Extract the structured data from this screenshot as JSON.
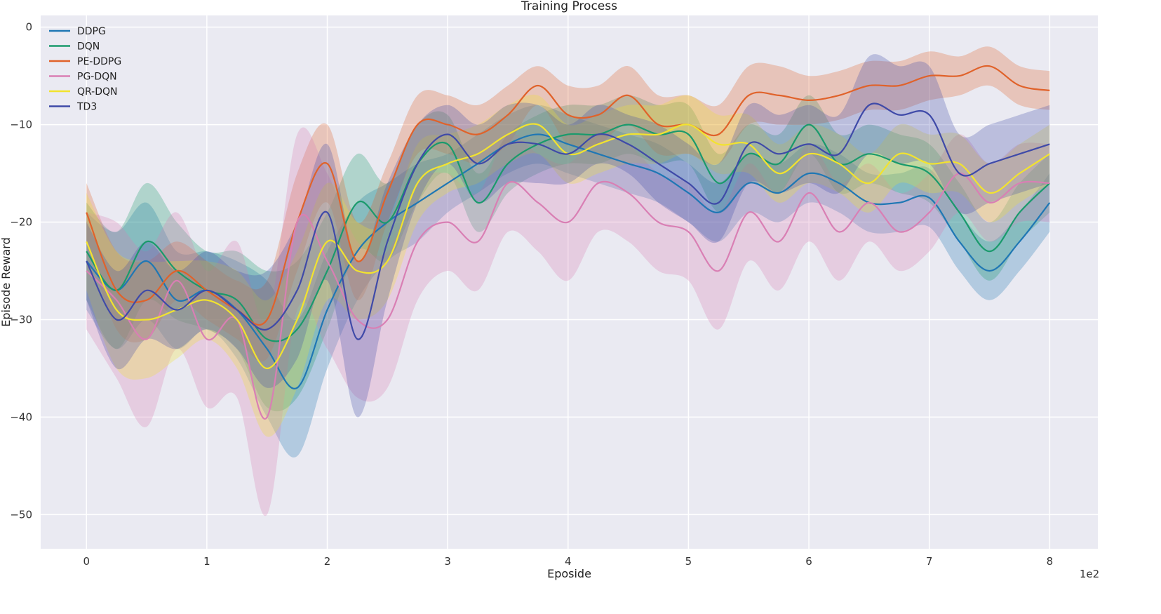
{
  "chart_data": {
    "type": "line",
    "title": "Training Process",
    "xlabel": "Eposide",
    "ylabel": "Episode Reward",
    "x_multiplier_label": "1e2",
    "xlim": [
      -0.38,
      8.4
    ],
    "ylim": [
      -53.5,
      1.2
    ],
    "x_ticks": [
      0,
      1,
      2,
      3,
      4,
      5,
      6,
      7,
      8
    ],
    "x_tick_labels": [
      "0",
      "1",
      "2",
      "3",
      "4",
      "5",
      "6",
      "7",
      "8"
    ],
    "y_ticks": [
      0,
      -10,
      -20,
      -30,
      -40,
      -50
    ],
    "y_tick_labels": [
      "0",
      "−10",
      "−20",
      "−30",
      "−40",
      "−50"
    ],
    "grid": true,
    "legend_position": "top-left",
    "x": [
      0,
      0.25,
      0.5,
      0.75,
      1.0,
      1.25,
      1.5,
      1.75,
      2.0,
      2.25,
      2.5,
      2.75,
      3.0,
      3.25,
      3.5,
      3.75,
      4.0,
      4.25,
      4.5,
      4.75,
      5.0,
      5.25,
      5.5,
      5.75,
      6.0,
      6.25,
      6.5,
      6.75,
      7.0,
      7.25,
      7.5,
      7.75,
      8.0
    ],
    "series": [
      {
        "name": "DDPG",
        "color": "#1f77b4",
        "values": [
          -24,
          -27,
          -24,
          -28,
          -27,
          -29,
          -33,
          -37,
          -29,
          -23,
          -20,
          -18,
          -16,
          -14,
          -12,
          -11,
          -12,
          -13,
          -14,
          -15,
          -17,
          -19,
          -16,
          -17,
          -15,
          -16,
          -18,
          -18,
          -17.5,
          -22,
          -25,
          -22,
          -18
        ],
        "band": [
          5,
          6,
          6,
          5,
          4,
          5,
          7,
          7,
          6,
          5,
          4,
          4,
          3,
          3,
          3,
          3,
          3,
          3,
          3,
          3,
          3,
          3,
          3,
          3,
          3,
          3,
          3,
          3,
          3,
          3,
          3,
          3,
          3
        ]
      },
      {
        "name": "DQN",
        "color": "#1a9a6c",
        "values": [
          -23,
          -27,
          -22,
          -25,
          -27,
          -28,
          -32,
          -31,
          -25,
          -18,
          -20,
          -14,
          -12,
          -18,
          -14,
          -12,
          -11,
          -11,
          -10,
          -11,
          -11,
          -16,
          -13,
          -14,
          -10,
          -14,
          -13,
          -14,
          -15,
          -19,
          -23,
          -19,
          -16
        ],
        "band": [
          5,
          6,
          6,
          5,
          4,
          5,
          7,
          7,
          6,
          5,
          4,
          4,
          3,
          3,
          3,
          3,
          3,
          3,
          3,
          3,
          3,
          3,
          3,
          3,
          3,
          3,
          3,
          3,
          3,
          3,
          3,
          3,
          3
        ]
      },
      {
        "name": "PE-DDPG",
        "color": "#e0622a",
        "values": [
          -19,
          -27,
          -28,
          -25,
          -27,
          -29,
          -30,
          -20,
          -14,
          -24,
          -17,
          -10,
          -10,
          -11,
          -9,
          -6,
          -9,
          -9,
          -7,
          -10,
          -10,
          -11,
          -7,
          -7,
          -7.5,
          -7,
          -6,
          -6,
          -5,
          -5,
          -4,
          -6,
          -6.5
        ],
        "band": [
          3,
          4,
          4,
          3,
          3,
          3,
          4,
          5,
          4,
          4,
          3,
          3,
          3,
          3,
          3,
          2,
          3,
          3,
          3,
          3,
          3,
          3,
          3,
          3,
          2.5,
          2.5,
          2.5,
          2.5,
          2.5,
          2,
          2,
          2,
          2
        ]
      },
      {
        "name": "PG-DQN",
        "color": "#d97fb4",
        "values": [
          -25,
          -28,
          -32,
          -26,
          -32,
          -30,
          -40,
          -20,
          -24,
          -30,
          -30,
          -22,
          -20,
          -22,
          -16,
          -18,
          -20,
          -16,
          -17,
          -20,
          -21,
          -25,
          -19,
          -22,
          -17,
          -21,
          -18,
          -21,
          -19,
          -15,
          -18,
          -16,
          -16
        ],
        "band": [
          6,
          8,
          9,
          7,
          7,
          8,
          10,
          9,
          9,
          8,
          7,
          6,
          5,
          5,
          5,
          5,
          6,
          5,
          5,
          5,
          5,
          6,
          5,
          5,
          5,
          5,
          4,
          4,
          4,
          4,
          4,
          4,
          4
        ]
      },
      {
        "name": "QR-DQN",
        "color": "#f2e32e",
        "values": [
          -22,
          -29,
          -30,
          -29,
          -28,
          -30,
          -35,
          -30,
          -22,
          -25,
          -24,
          -16,
          -14,
          -13,
          -11,
          -10,
          -13,
          -12,
          -11,
          -11,
          -10,
          -12,
          -12,
          -15,
          -13,
          -14,
          -16,
          -13,
          -14,
          -14,
          -17,
          -15,
          -13
        ],
        "band": [
          5,
          6,
          6,
          5,
          4,
          5,
          7,
          7,
          6,
          5,
          4,
          4,
          3,
          3,
          3,
          3,
          3,
          3,
          3,
          3,
          3,
          3,
          3,
          3,
          3,
          3,
          3,
          3,
          3,
          3,
          3,
          3,
          3
        ]
      },
      {
        "name": "TD3",
        "color": "#3f4aa8",
        "values": [
          -24,
          -30,
          -27,
          -29,
          -27,
          -29,
          -31,
          -27,
          -19,
          -32,
          -22,
          -14,
          -11,
          -14,
          -12,
          -12,
          -13,
          -11,
          -12,
          -14,
          -16,
          -18,
          -12,
          -13,
          -12,
          -13,
          -8,
          -9,
          -9,
          -15,
          -14,
          -13,
          -12
        ],
        "band": [
          4,
          5,
          5,
          4,
          4,
          4,
          6,
          7,
          7,
          8,
          6,
          4,
          3,
          4,
          4,
          4,
          3,
          3,
          3,
          4,
          4,
          4,
          4,
          4,
          4,
          4,
          5,
          5,
          5,
          4,
          4,
          4,
          4
        ]
      }
    ]
  }
}
